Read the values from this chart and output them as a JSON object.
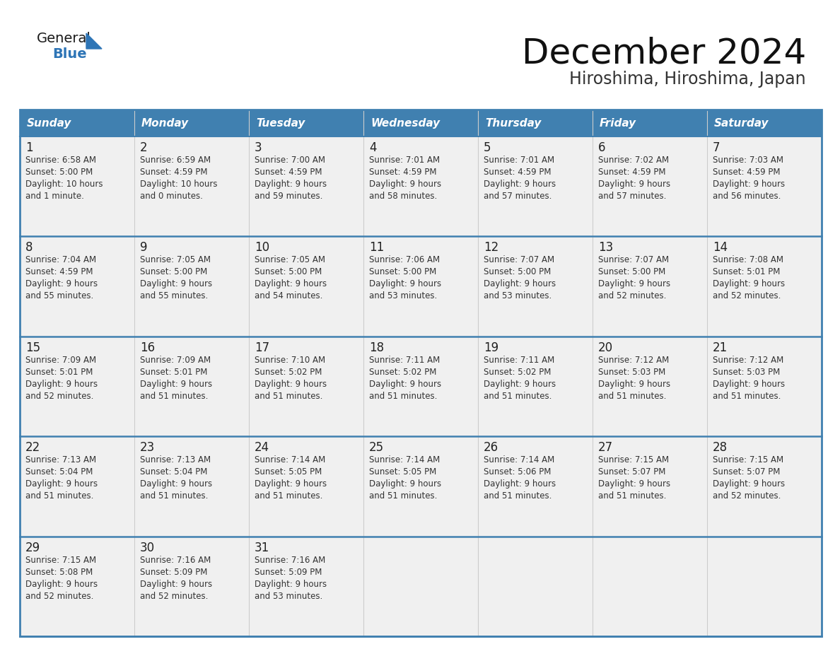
{
  "title": "December 2024",
  "subtitle": "Hiroshima, Hiroshima, Japan",
  "header_bg": "#4080B0",
  "header_text_color": "#FFFFFF",
  "cell_bg": "#F0F0F0",
  "row_separator_color": "#4080B0",
  "col_separator_color": "#CCCCCC",
  "outer_border_color": "#4080B0",
  "day_names": [
    "Sunday",
    "Monday",
    "Tuesday",
    "Wednesday",
    "Thursday",
    "Friday",
    "Saturday"
  ],
  "days": [
    {
      "day": 1,
      "col": 0,
      "row": 0,
      "sunrise": "6:58 AM",
      "sunset": "5:00 PM",
      "daylight_line1": "Daylight: 10 hours",
      "daylight_line2": "and 1 minute."
    },
    {
      "day": 2,
      "col": 1,
      "row": 0,
      "sunrise": "6:59 AM",
      "sunset": "4:59 PM",
      "daylight_line1": "Daylight: 10 hours",
      "daylight_line2": "and 0 minutes."
    },
    {
      "day": 3,
      "col": 2,
      "row": 0,
      "sunrise": "7:00 AM",
      "sunset": "4:59 PM",
      "daylight_line1": "Daylight: 9 hours",
      "daylight_line2": "and 59 minutes."
    },
    {
      "day": 4,
      "col": 3,
      "row": 0,
      "sunrise": "7:01 AM",
      "sunset": "4:59 PM",
      "daylight_line1": "Daylight: 9 hours",
      "daylight_line2": "and 58 minutes."
    },
    {
      "day": 5,
      "col": 4,
      "row": 0,
      "sunrise": "7:01 AM",
      "sunset": "4:59 PM",
      "daylight_line1": "Daylight: 9 hours",
      "daylight_line2": "and 57 minutes."
    },
    {
      "day": 6,
      "col": 5,
      "row": 0,
      "sunrise": "7:02 AM",
      "sunset": "4:59 PM",
      "daylight_line1": "Daylight: 9 hours",
      "daylight_line2": "and 57 minutes."
    },
    {
      "day": 7,
      "col": 6,
      "row": 0,
      "sunrise": "7:03 AM",
      "sunset": "4:59 PM",
      "daylight_line1": "Daylight: 9 hours",
      "daylight_line2": "and 56 minutes."
    },
    {
      "day": 8,
      "col": 0,
      "row": 1,
      "sunrise": "7:04 AM",
      "sunset": "4:59 PM",
      "daylight_line1": "Daylight: 9 hours",
      "daylight_line2": "and 55 minutes."
    },
    {
      "day": 9,
      "col": 1,
      "row": 1,
      "sunrise": "7:05 AM",
      "sunset": "5:00 PM",
      "daylight_line1": "Daylight: 9 hours",
      "daylight_line2": "and 55 minutes."
    },
    {
      "day": 10,
      "col": 2,
      "row": 1,
      "sunrise": "7:05 AM",
      "sunset": "5:00 PM",
      "daylight_line1": "Daylight: 9 hours",
      "daylight_line2": "and 54 minutes."
    },
    {
      "day": 11,
      "col": 3,
      "row": 1,
      "sunrise": "7:06 AM",
      "sunset": "5:00 PM",
      "daylight_line1": "Daylight: 9 hours",
      "daylight_line2": "and 53 minutes."
    },
    {
      "day": 12,
      "col": 4,
      "row": 1,
      "sunrise": "7:07 AM",
      "sunset": "5:00 PM",
      "daylight_line1": "Daylight: 9 hours",
      "daylight_line2": "and 53 minutes."
    },
    {
      "day": 13,
      "col": 5,
      "row": 1,
      "sunrise": "7:07 AM",
      "sunset": "5:00 PM",
      "daylight_line1": "Daylight: 9 hours",
      "daylight_line2": "and 52 minutes."
    },
    {
      "day": 14,
      "col": 6,
      "row": 1,
      "sunrise": "7:08 AM",
      "sunset": "5:01 PM",
      "daylight_line1": "Daylight: 9 hours",
      "daylight_line2": "and 52 minutes."
    },
    {
      "day": 15,
      "col": 0,
      "row": 2,
      "sunrise": "7:09 AM",
      "sunset": "5:01 PM",
      "daylight_line1": "Daylight: 9 hours",
      "daylight_line2": "and 52 minutes."
    },
    {
      "day": 16,
      "col": 1,
      "row": 2,
      "sunrise": "7:09 AM",
      "sunset": "5:01 PM",
      "daylight_line1": "Daylight: 9 hours",
      "daylight_line2": "and 51 minutes."
    },
    {
      "day": 17,
      "col": 2,
      "row": 2,
      "sunrise": "7:10 AM",
      "sunset": "5:02 PM",
      "daylight_line1": "Daylight: 9 hours",
      "daylight_line2": "and 51 minutes."
    },
    {
      "day": 18,
      "col": 3,
      "row": 2,
      "sunrise": "7:11 AM",
      "sunset": "5:02 PM",
      "daylight_line1": "Daylight: 9 hours",
      "daylight_line2": "and 51 minutes."
    },
    {
      "day": 19,
      "col": 4,
      "row": 2,
      "sunrise": "7:11 AM",
      "sunset": "5:02 PM",
      "daylight_line1": "Daylight: 9 hours",
      "daylight_line2": "and 51 minutes."
    },
    {
      "day": 20,
      "col": 5,
      "row": 2,
      "sunrise": "7:12 AM",
      "sunset": "5:03 PM",
      "daylight_line1": "Daylight: 9 hours",
      "daylight_line2": "and 51 minutes."
    },
    {
      "day": 21,
      "col": 6,
      "row": 2,
      "sunrise": "7:12 AM",
      "sunset": "5:03 PM",
      "daylight_line1": "Daylight: 9 hours",
      "daylight_line2": "and 51 minutes."
    },
    {
      "day": 22,
      "col": 0,
      "row": 3,
      "sunrise": "7:13 AM",
      "sunset": "5:04 PM",
      "daylight_line1": "Daylight: 9 hours",
      "daylight_line2": "and 51 minutes."
    },
    {
      "day": 23,
      "col": 1,
      "row": 3,
      "sunrise": "7:13 AM",
      "sunset": "5:04 PM",
      "daylight_line1": "Daylight: 9 hours",
      "daylight_line2": "and 51 minutes."
    },
    {
      "day": 24,
      "col": 2,
      "row": 3,
      "sunrise": "7:14 AM",
      "sunset": "5:05 PM",
      "daylight_line1": "Daylight: 9 hours",
      "daylight_line2": "and 51 minutes."
    },
    {
      "day": 25,
      "col": 3,
      "row": 3,
      "sunrise": "7:14 AM",
      "sunset": "5:05 PM",
      "daylight_line1": "Daylight: 9 hours",
      "daylight_line2": "and 51 minutes."
    },
    {
      "day": 26,
      "col": 4,
      "row": 3,
      "sunrise": "7:14 AM",
      "sunset": "5:06 PM",
      "daylight_line1": "Daylight: 9 hours",
      "daylight_line2": "and 51 minutes."
    },
    {
      "day": 27,
      "col": 5,
      "row": 3,
      "sunrise": "7:15 AM",
      "sunset": "5:07 PM",
      "daylight_line1": "Daylight: 9 hours",
      "daylight_line2": "and 51 minutes."
    },
    {
      "day": 28,
      "col": 6,
      "row": 3,
      "sunrise": "7:15 AM",
      "sunset": "5:07 PM",
      "daylight_line1": "Daylight: 9 hours",
      "daylight_line2": "and 52 minutes."
    },
    {
      "day": 29,
      "col": 0,
      "row": 4,
      "sunrise": "7:15 AM",
      "sunset": "5:08 PM",
      "daylight_line1": "Daylight: 9 hours",
      "daylight_line2": "and 52 minutes."
    },
    {
      "day": 30,
      "col": 1,
      "row": 4,
      "sunrise": "7:16 AM",
      "sunset": "5:09 PM",
      "daylight_line1": "Daylight: 9 hours",
      "daylight_line2": "and 52 minutes."
    },
    {
      "day": 31,
      "col": 2,
      "row": 4,
      "sunrise": "7:16 AM",
      "sunset": "5:09 PM",
      "daylight_line1": "Daylight: 9 hours",
      "daylight_line2": "and 53 minutes."
    }
  ],
  "num_rows": 5,
  "logo_general_color": "#1a1a1a",
  "logo_blue_color": "#2E75B6",
  "logo_triangle_color": "#2E75B6"
}
